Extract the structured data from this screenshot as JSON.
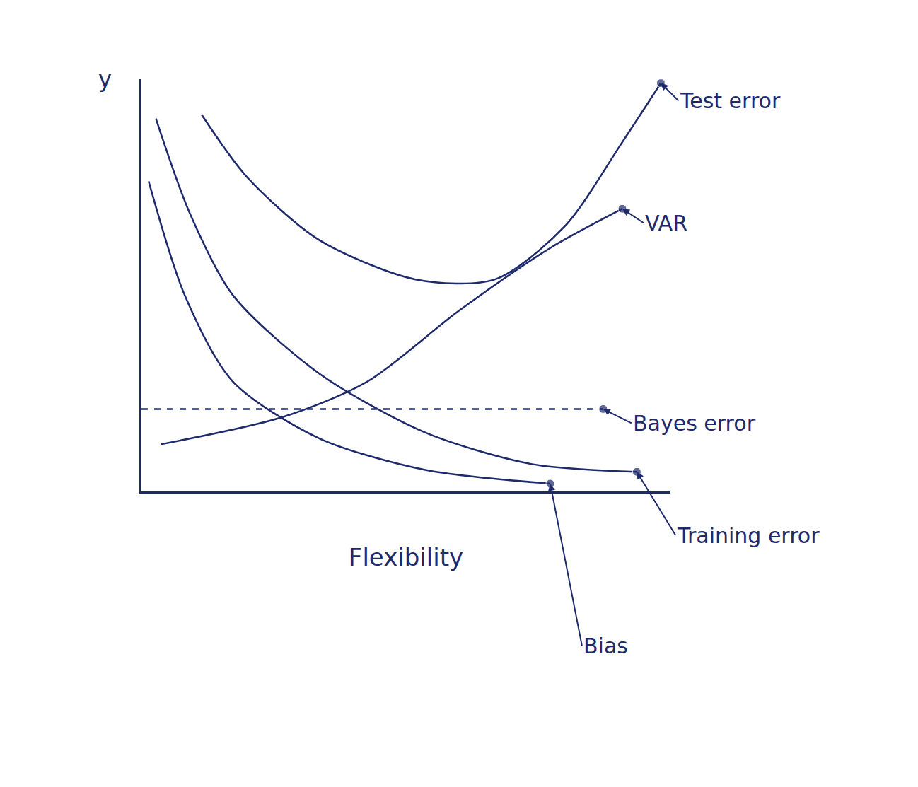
{
  "chart_data": {
    "type": "line",
    "x_label": "Flexibility",
    "y_label": "y",
    "xlim": [
      0,
      11
    ],
    "ylim": [
      0,
      10.5
    ],
    "tick_labels": false,
    "grid": false,
    "series": [
      {
        "name": "Test error",
        "color": "#1f2a6b",
        "line_style": "solid",
        "x": [
          1.25,
          2.2,
          3.7,
          5.7,
          7.35,
          8.8,
          10.0,
          10.8
        ],
        "values": [
          9.6,
          8.0,
          6.4,
          5.4,
          5.4,
          6.75,
          8.9,
          10.4
        ]
      },
      {
        "name": "VAR",
        "color": "#1f2a6b",
        "line_style": "solid",
        "x": [
          0.4,
          2.95,
          4.7,
          6.6,
          8.5,
          10.0
        ],
        "values": [
          1.2,
          1.9,
          2.8,
          4.6,
          6.2,
          7.2
        ]
      },
      {
        "name": "Bayes error",
        "color": "#1f2a6b",
        "line_style": "dashed",
        "x": [
          0,
          9.6
        ],
        "values": [
          2.1,
          2.1
        ]
      },
      {
        "name": "Training error",
        "color": "#1f2a6b",
        "line_style": "solid",
        "x": [
          0.3,
          1.0,
          1.9,
          3.7,
          5.9,
          8.1,
          10.3
        ],
        "values": [
          9.5,
          7.1,
          5.0,
          3.0,
          1.5,
          0.7,
          0.5
        ]
      },
      {
        "name": "Bias",
        "color": "#1f2a6b",
        "line_style": "solid",
        "x": [
          0.15,
          0.9,
          1.9,
          3.7,
          5.9,
          8.5
        ],
        "values": [
          7.9,
          5.0,
          2.8,
          1.35,
          0.55,
          0.2
        ]
      }
    ]
  }
}
